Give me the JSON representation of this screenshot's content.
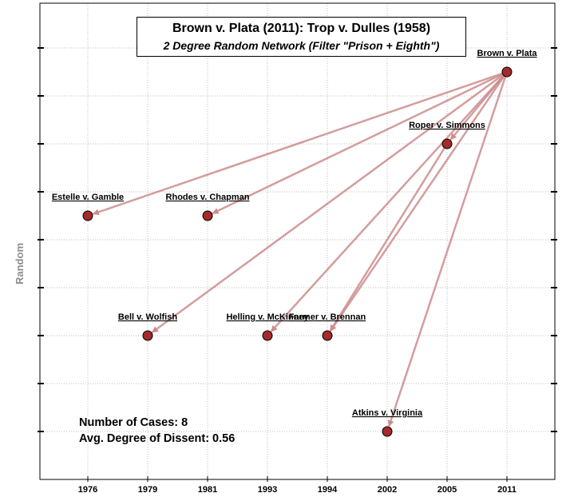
{
  "title": {
    "line1": "Brown v. Plata (2011): Trop v. Dulles (1958)",
    "line2": "2 Degree Random Network (Filter \"Prison + Eighth\")"
  },
  "axes": {
    "ylabel": "Random",
    "x_ticks": [
      "1976",
      "1979",
      "1981",
      "1993",
      "1994",
      "2002",
      "2005",
      "2011"
    ]
  },
  "stats": {
    "cases": "Number of Cases: 8",
    "dissent": "Avg. Degree of Dissent: 0.56"
  },
  "colors": {
    "node_fill": "#a52a2a",
    "edge": "#cd8c8c",
    "grid": "#bbbbbb"
  },
  "nodes": [
    {
      "id": "brown",
      "label": "Brown v. Plata",
      "year": "2011",
      "level": 8
    },
    {
      "id": "roper",
      "label": "Roper v. Simmons",
      "year": "2005",
      "level": 6.5
    },
    {
      "id": "estelle",
      "label": "Estelle v. Gamble",
      "year": "1976",
      "level": 5
    },
    {
      "id": "rhodes",
      "label": "Rhodes v. Chapman",
      "year": "1981",
      "level": 5
    },
    {
      "id": "bell",
      "label": "Bell v. Wolfish",
      "year": "1979",
      "level": 2.5
    },
    {
      "id": "helling",
      "label": "Helling v. McKinney",
      "year": "1993",
      "level": 2.5
    },
    {
      "id": "farmer",
      "label": "Farmer v. Brennan",
      "year": "1994",
      "level": 2.5
    },
    {
      "id": "atkins",
      "label": "Atkins v. Virginia",
      "year": "2002",
      "level": 0.5
    }
  ],
  "edges": [
    {
      "from": "brown",
      "to": "estelle"
    },
    {
      "from": "brown",
      "to": "rhodes"
    },
    {
      "from": "brown",
      "to": "bell"
    },
    {
      "from": "brown",
      "to": "helling"
    },
    {
      "from": "brown",
      "to": "farmer"
    },
    {
      "from": "brown",
      "to": "roper"
    },
    {
      "from": "brown",
      "to": "atkins"
    },
    {
      "from": "roper",
      "to": "farmer"
    }
  ]
}
